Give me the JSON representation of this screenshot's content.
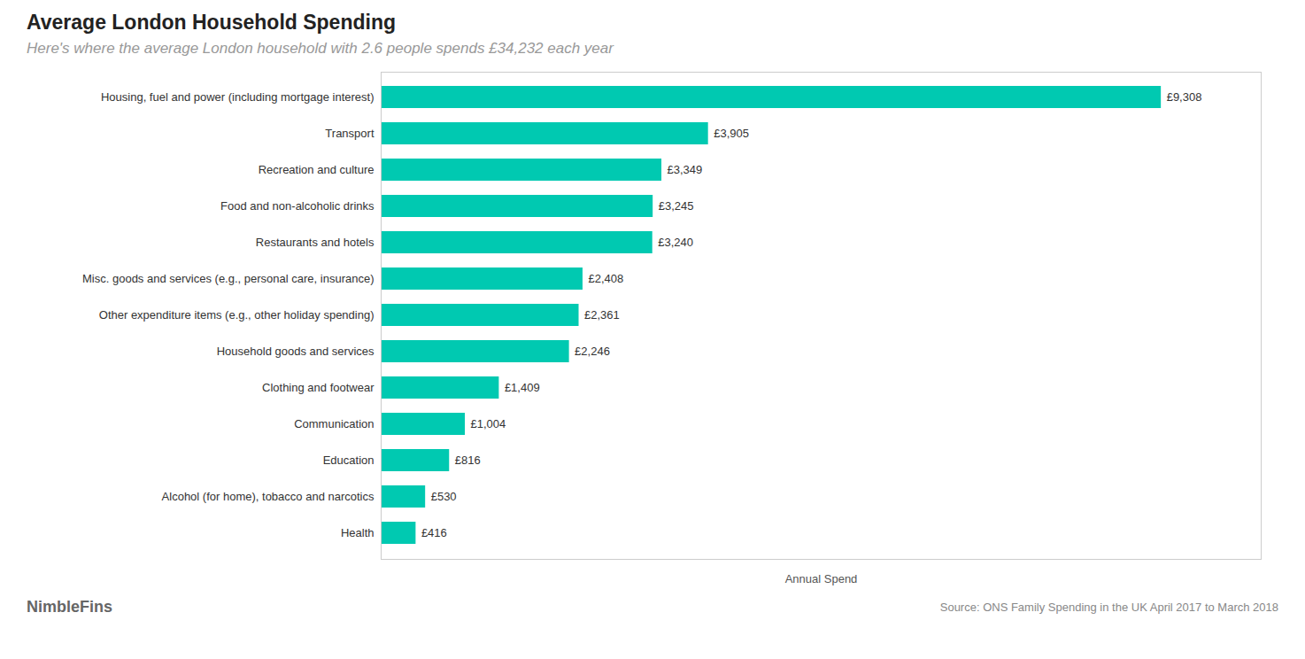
{
  "chart_data": {
    "type": "bar",
    "orientation": "horizontal",
    "title": "Average London Household Spending",
    "subtitle": "Here's where the average London household with 2.6 people spends £34,232 each year",
    "xlabel": "Annual Spend",
    "categories": [
      "Housing, fuel and power (including mortgage interest)",
      "Transport",
      "Recreation and culture",
      "Food and non-alcoholic drinks",
      "Restaurants and hotels",
      "Misc. goods and services (e.g., personal care, insurance)",
      "Other expenditure items (e.g., other holiday spending)",
      "Household goods and services",
      "Clothing and footwear",
      "Communication",
      "Education",
      "Alcohol (for home), tobacco and narcotics",
      "Health"
    ],
    "values": [
      9308,
      3905,
      3349,
      3245,
      3240,
      2408,
      2361,
      2246,
      1409,
      1004,
      816,
      530,
      416
    ],
    "value_labels": [
      "£9,308",
      "£3,905",
      "£3,349",
      "£3,245",
      "£3,240",
      "£2,408",
      "£2,361",
      "£2,246",
      "£1,409",
      "£1,004",
      "£816",
      "£530",
      "£416"
    ],
    "data_labels": true,
    "color": "#00C9B1",
    "xlim": [
      0,
      10500
    ],
    "tick_labels": "y",
    "grid": false,
    "annotations": [
      "NimbleFins",
      "Source: ONS Family Spending in the UK April 2017 to March 2018"
    ]
  }
}
